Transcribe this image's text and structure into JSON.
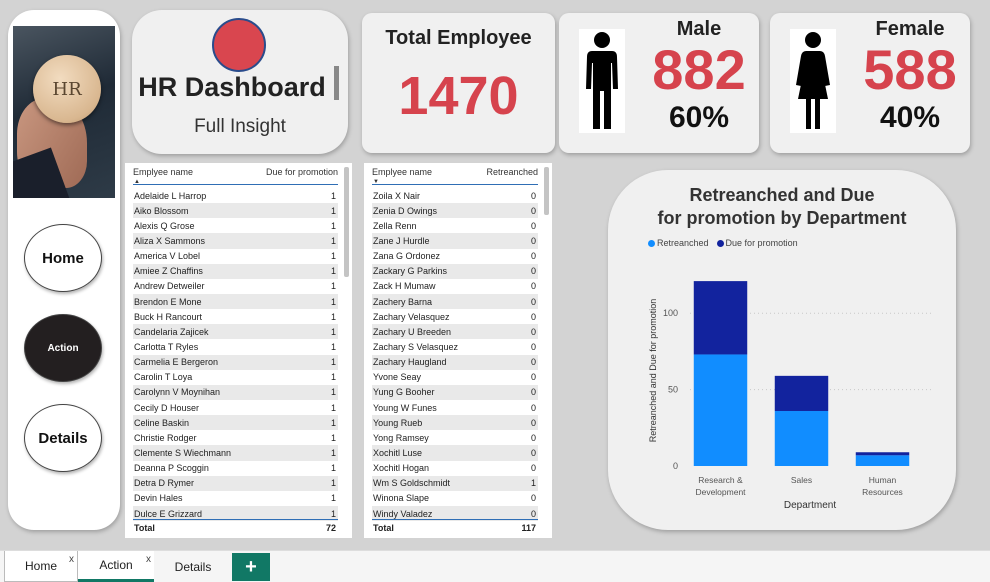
{
  "nav": {
    "badge_text": "HR",
    "buttons": [
      {
        "label": "Home"
      },
      {
        "label": "Action"
      },
      {
        "label": "Details"
      }
    ]
  },
  "header": {
    "title": "HR Dashboard",
    "subtitle": "Full Insight"
  },
  "kpi": {
    "total_label": "Total Employee",
    "total_value": "1470",
    "male_label": "Male",
    "male_value": "882",
    "male_pct": "60%",
    "female_label": "Female",
    "female_value": "588",
    "female_pct": "40%"
  },
  "promotion_table": {
    "col_name": "Emplyee name",
    "col_value": "Due for promotion",
    "rows": [
      [
        "Adelaide L Harrop",
        "1"
      ],
      [
        "Aiko Blossom",
        "1"
      ],
      [
        "Alexis Q Grose",
        "1"
      ],
      [
        "Aliza X Sammons",
        "1"
      ],
      [
        "America V Lobel",
        "1"
      ],
      [
        "Amiee Z Chaffins",
        "1"
      ],
      [
        "Andrew Detweiler",
        "1"
      ],
      [
        "Brendon E Mone",
        "1"
      ],
      [
        "Buck H Rancourt",
        "1"
      ],
      [
        "Candelaria Zajicek",
        "1"
      ],
      [
        "Carlotta T Ryles",
        "1"
      ],
      [
        "Carmelia E Bergeron",
        "1"
      ],
      [
        "Carolin T Loya",
        "1"
      ],
      [
        "Carolynn V Moynihan",
        "1"
      ],
      [
        "Cecily D Houser",
        "1"
      ],
      [
        "Celine Baskin",
        "1"
      ],
      [
        "Christie Rodger",
        "1"
      ],
      [
        "Clemente S Wiechmann",
        "1"
      ],
      [
        "Deanna P Scoggin",
        "1"
      ],
      [
        "Detra D Rymer",
        "1"
      ],
      [
        "Devin Hales",
        "1"
      ],
      [
        "Dulce E Grizzard",
        "1"
      ]
    ],
    "total_label": "Total",
    "total_value": "72"
  },
  "retrench_table": {
    "col_name": "Emplyee name",
    "col_value": "Retreanched",
    "rows": [
      [
        "Zoila X Nair",
        "0"
      ],
      [
        "Zenia D Owings",
        "0"
      ],
      [
        "Zella Renn",
        "0"
      ],
      [
        "Zane J Hurdle",
        "0"
      ],
      [
        "Zana G Ordonez",
        "0"
      ],
      [
        "Zackary G Parkins",
        "0"
      ],
      [
        "Zack H Mumaw",
        "0"
      ],
      [
        "Zachery Barna",
        "0"
      ],
      [
        "Zachary Velasquez",
        "0"
      ],
      [
        "Zachary U Breeden",
        "0"
      ],
      [
        "Zachary S Velasquez",
        "0"
      ],
      [
        "Zachary Haugland",
        "0"
      ],
      [
        "Yvone Seay",
        "0"
      ],
      [
        "Yung G Booher",
        "0"
      ],
      [
        "Young W Funes",
        "0"
      ],
      [
        "Young Rueb",
        "0"
      ],
      [
        "Yong Ramsey",
        "0"
      ],
      [
        "Xochitl Luse",
        "0"
      ],
      [
        "Xochitl Hogan",
        "0"
      ],
      [
        "Wm S Goldschmidt",
        "1"
      ],
      [
        "Winona Slape",
        "0"
      ],
      [
        "Windy Valadez",
        "0"
      ]
    ],
    "total_label": "Total",
    "total_value": "117"
  },
  "chart_data": {
    "type": "bar",
    "stacked": true,
    "title": "Retreanched and Due for promotion by Department",
    "xlabel": "Department",
    "ylabel": "Retreanched and Due for promotion",
    "categories": [
      "Research & Development",
      "Sales",
      "Human Resources"
    ],
    "series": [
      {
        "name": "Retreanched",
        "values": [
          73,
          36,
          7
        ],
        "color": "#118dff"
      },
      {
        "name": "Due for promotion",
        "values": [
          48,
          23,
          2
        ],
        "color": "#12239e"
      }
    ],
    "yticks": [
      0,
      50,
      100
    ],
    "ylim": [
      0,
      125
    ],
    "legend_position": "top-left",
    "grid": true
  },
  "tabs": [
    {
      "label": "Home"
    },
    {
      "label": "Action"
    },
    {
      "label": "Details"
    }
  ],
  "tab_close": "x",
  "tab_add": "+"
}
